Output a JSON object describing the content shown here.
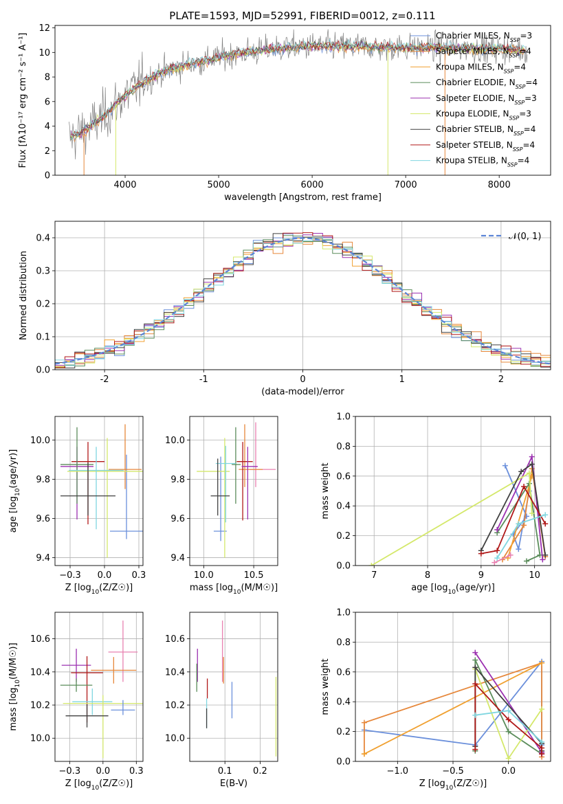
{
  "figure": {
    "title": "PLATE=1593, MJD=52991, FIBERID=0012, z=0.111"
  },
  "styles": {
    "colors": [
      "#6A8FDB",
      "#E6873A",
      "#F0A030",
      "#5A8C5A",
      "#9B30B0",
      "#D4E86A",
      "#404040",
      "#B01818",
      "#7FD6E0",
      "#E880B0"
    ],
    "gray": "#7f7f7f",
    "normal_color": "#5B84D6",
    "grid_color": "#b0b0b0"
  },
  "chart_data": [
    {
      "id": "spectrum",
      "type": "line",
      "xlabel": "wavelength [Angstrom, rest frame]",
      "ylabel": "Flux [fλ10⁻¹⁷ erg cm⁻² s⁻¹ A⁻¹]",
      "xlim": [
        3250,
        8550
      ],
      "ylim": [
        0,
        12.2
      ],
      "xticks": [
        4000,
        5000,
        6000,
        7000,
        8000
      ],
      "yticks": [
        0,
        2,
        4,
        6,
        8,
        10,
        12
      ],
      "legend_position": "top-right",
      "continuum": {
        "x": [
          3400,
          3600,
          3800,
          4000,
          4200,
          4400,
          4600,
          4800,
          5000,
          5200,
          5400,
          5600,
          5800,
          6000,
          6200,
          6400,
          6600,
          6800,
          7000,
          7200,
          7400,
          7600,
          7800,
          8000,
          8200,
          8300
        ],
        "y": [
          3.0,
          3.8,
          5.0,
          6.5,
          7.6,
          8.4,
          8.9,
          9.2,
          9.6,
          9.9,
          10.1,
          10.3,
          10.4,
          10.5,
          10.5,
          10.5,
          10.45,
          10.4,
          10.4,
          10.4,
          10.35,
          10.35,
          10.3,
          10.3,
          10.2,
          10.2
        ]
      },
      "series": [
        {
          "name": "Chabrier MILES, N_SSP=3",
          "color_index": 0
        },
        {
          "name": "Salpeter MILES, N_SSP=4",
          "color_index": 1
        },
        {
          "name": "Kroupa MILES, N_SSP=4",
          "color_index": 2
        },
        {
          "name": "Chabrier ELODIE, N_SSP=4",
          "color_index": 3
        },
        {
          "name": "Salpeter ELODIE, N_SSP=3",
          "color_index": 4
        },
        {
          "name": "Kroupa ELODIE, N_SSP=3",
          "color_index": 5
        },
        {
          "name": "Chabrier STELIB, N_SSP=4",
          "color_index": 6
        },
        {
          "name": "Salpeter STELIB, N_SSP=4",
          "color_index": 7
        },
        {
          "name": "Kroupa STELIB, N_SSP=4",
          "color_index": 8
        }
      ]
    },
    {
      "id": "residuals",
      "type": "histogram",
      "xlabel": "(data-model)/error",
      "ylabel": "Normed distribution",
      "xlim": [
        -2.5,
        2.5
      ],
      "ylim": [
        0,
        0.45
      ],
      "xticks": [
        -2,
        -1,
        0,
        1,
        2
      ],
      "yticks": [
        0.0,
        0.1,
        0.2,
        0.3,
        0.4
      ],
      "bin_width": 0.1,
      "legend": "𝒩(0, 1)",
      "legend_position": "top-right",
      "grid": true
    },
    {
      "id": "age_vs_Z",
      "type": "errorbar",
      "xlabel": "Z [log10(Z/Z☉)]",
      "ylabel": "age  [log10(age/yr)]",
      "xlim": [
        -0.36,
        0.28
      ],
      "ylim": [
        9.36,
        10.12
      ],
      "xticks": [
        -0.25,
        0.0,
        0.25
      ],
      "yticks": [
        9.4,
        9.6,
        9.8,
        10.0
      ],
      "grid": true,
      "points": [
        {
          "c": 0,
          "x": 0.16,
          "y": 9.535,
          "xerr": [
            0.12,
            0.12
          ],
          "yerr": [
            0.04,
            0.39
          ]
        },
        {
          "c": 1,
          "x": 0.15,
          "y": 9.85,
          "xerr": [
            0.12,
            0.12
          ],
          "yerr": [
            0.1,
            0.23
          ]
        },
        {
          "c": 7,
          "x": -0.12,
          "y": 9.89,
          "xerr": [
            0.12,
            0.12
          ],
          "yerr": [
            0.32,
            0.1
          ]
        },
        {
          "c": 4,
          "x": -0.2,
          "y": 9.865,
          "xerr": [
            0.12,
            0.12
          ],
          "yerr": [
            0.27,
            0.1
          ]
        },
        {
          "c": 3,
          "x": -0.2,
          "y": 9.875,
          "xerr": [
            0.12,
            0.12
          ],
          "yerr": [
            0.2,
            0.19
          ]
        },
        {
          "c": 5,
          "x": 0.02,
          "y": 9.84,
          "xerr": [
            0.29,
            0.29
          ],
          "yerr": [
            0.44,
            0.17
          ]
        },
        {
          "c": 8,
          "x": -0.06,
          "y": 9.845,
          "xerr": [
            0.2,
            0.2
          ],
          "yerr": [
            0.3,
            0.12
          ]
        },
        {
          "c": 6,
          "x": -0.12,
          "y": 9.715,
          "xerr": [
            0.2,
            0.2
          ],
          "yerr": [
            0.1,
            0.17
          ]
        }
      ]
    },
    {
      "id": "age_vs_mass",
      "type": "errorbar",
      "xlabel": "mass [log10(M/M☉)]",
      "ylabel": "",
      "xlim": [
        9.86,
        10.74
      ],
      "ylim": [
        9.36,
        10.12
      ],
      "xticks": [
        10.0,
        10.5
      ],
      "yticks": [
        9.4,
        9.6,
        9.8,
        10.0
      ],
      "grid": true,
      "points": [
        {
          "c": 0,
          "x": 10.17,
          "y": 9.535,
          "xerr": [
            0.07,
            0.06
          ],
          "yerr": [
            0.05,
            0.38
          ]
        },
        {
          "c": 9,
          "x": 10.52,
          "y": 9.85,
          "xerr": [
            0.06,
            0.2
          ],
          "yerr": [
            0.09,
            0.24
          ]
        },
        {
          "c": 1,
          "x": 10.41,
          "y": 9.85,
          "xerr": [
            0.06,
            0.18
          ],
          "yerr": [
            0.09,
            0.23
          ]
        },
        {
          "c": 7,
          "x": 10.39,
          "y": 9.89,
          "xerr": [
            0.06,
            0.1
          ],
          "yerr": [
            0.3,
            0.1
          ]
        },
        {
          "c": 4,
          "x": 10.44,
          "y": 9.865,
          "xerr": [
            0.06,
            0.1
          ],
          "yerr": [
            0.27,
            0.1
          ]
        },
        {
          "c": 3,
          "x": 10.32,
          "y": 9.875,
          "xerr": [
            0.04,
            0.05
          ],
          "yerr": [
            0.2,
            0.19
          ]
        },
        {
          "c": 5,
          "x": 10.21,
          "y": 9.84,
          "xerr": [
            0.28,
            0.05
          ],
          "yerr": [
            0.44,
            0.17
          ]
        },
        {
          "c": 8,
          "x": 10.22,
          "y": 9.88,
          "xerr": [
            0.1,
            0.1
          ],
          "yerr": [
            0.3,
            0.09
          ]
        },
        {
          "c": 6,
          "x": 10.14,
          "y": 9.715,
          "xerr": [
            0.07,
            0.12
          ],
          "yerr": [
            0.1,
            0.19
          ]
        }
      ]
    },
    {
      "id": "weight_vs_age",
      "type": "line",
      "xlabel": "age  [log10(age/yr)]",
      "ylabel": "mass weight",
      "xlim": [
        6.65,
        10.3
      ],
      "ylim": [
        0,
        1
      ],
      "xticks": [
        7,
        8,
        9,
        10
      ],
      "yticks": [
        0.0,
        0.2,
        0.4,
        0.6,
        0.8,
        1.0
      ],
      "grid": true,
      "series": [
        {
          "c": 0,
          "x": [
            9.45,
            9.85,
            9.6,
            9.7,
            9.9
          ],
          "y": [
            0.67,
            0.33,
            0.21,
            0.11,
            0.5
          ]
        },
        {
          "c": 1,
          "x": [
            9.4,
            9.8,
            9.95,
            10.2
          ],
          "y": [
            0.04,
            0.27,
            0.65,
            0.06
          ]
        },
        {
          "c": 2,
          "x": [
            9.5,
            9.95
          ],
          "y": [
            0.05,
            0.6
          ]
        },
        {
          "c": 3,
          "x": [
            9.3,
            9.9,
            10.1,
            9.85
          ],
          "y": [
            0.22,
            0.55,
            0.07,
            0.03
          ]
        },
        {
          "c": 4,
          "x": [
            9.3,
            9.95,
            10.15
          ],
          "y": [
            0.24,
            0.73,
            0.04
          ]
        },
        {
          "c": 5,
          "x": [
            6.95,
            9.9,
            9.95
          ],
          "y": [
            0.0,
            0.62,
            0.35
          ]
        },
        {
          "c": 6,
          "x": [
            9.0,
            9.75,
            9.95,
            10.2
          ],
          "y": [
            0.1,
            0.63,
            0.68,
            0.07
          ]
        },
        {
          "c": 7,
          "x": [
            9.0,
            9.3,
            9.8,
            10.2
          ],
          "y": [
            0.08,
            0.1,
            0.53,
            0.28
          ]
        },
        {
          "c": 8,
          "x": [
            9.3,
            9.7,
            10.2
          ],
          "y": [
            0.05,
            0.28,
            0.34
          ]
        },
        {
          "c": 9,
          "x": [
            9.25,
            9.55
          ],
          "y": [
            0.02,
            0.07
          ]
        }
      ]
    },
    {
      "id": "mass_vs_Z",
      "type": "errorbar",
      "xlabel": "Z [log10(Z/Z☉)]",
      "ylabel": "mass [log10(M/M☉)]",
      "xlim": [
        -0.36,
        0.3
      ],
      "ylim": [
        9.86,
        10.76
      ],
      "xticks": [
        -0.25,
        0.0,
        0.25
      ],
      "yticks": [
        10.0,
        10.2,
        10.4,
        10.6
      ],
      "grid": true,
      "points": [
        {
          "c": 9,
          "x": 0.15,
          "y": 10.52,
          "xerr": [
            0.11,
            0.11
          ],
          "yerr": [
            0.18,
            0.19
          ]
        },
        {
          "c": 4,
          "x": -0.2,
          "y": 10.44,
          "xerr": [
            0.11,
            0.11
          ],
          "yerr": [
            0.1,
            0.1
          ]
        },
        {
          "c": 1,
          "x": 0.08,
          "y": 10.41,
          "xerr": [
            0.17,
            0.17
          ],
          "yerr": [
            0.08,
            0.08
          ]
        },
        {
          "c": 7,
          "x": -0.12,
          "y": 10.395,
          "xerr": [
            0.12,
            0.12
          ],
          "yerr": [
            0.3,
            0.1
          ]
        },
        {
          "c": 3,
          "x": -0.2,
          "y": 10.32,
          "xerr": [
            0.12,
            0.12
          ],
          "yerr": [
            0.04,
            0.04
          ]
        },
        {
          "c": 8,
          "x": -0.08,
          "y": 10.22,
          "xerr": [
            0.15,
            0.15
          ],
          "yerr": [
            0.08,
            0.08
          ]
        },
        {
          "c": 5,
          "x": 0.0,
          "y": 10.21,
          "xerr": [
            0.3,
            0.3
          ],
          "yerr": [
            0.33,
            0.05
          ]
        },
        {
          "c": 0,
          "x": 0.15,
          "y": 10.17,
          "xerr": [
            0.09,
            0.09
          ],
          "yerr": [
            0.03,
            0.06
          ]
        },
        {
          "c": 6,
          "x": -0.12,
          "y": 10.135,
          "xerr": [
            0.16,
            0.16
          ],
          "yerr": [
            0.07,
            0.07
          ]
        }
      ]
    },
    {
      "id": "mass_vs_EBV",
      "type": "errorbar",
      "xlabel": "E(B-V)",
      "ylabel": "",
      "xlim": [
        0.0,
        0.25
      ],
      "ylim": [
        9.86,
        10.76
      ],
      "xticks": [
        0.1,
        0.2
      ],
      "yticks": [
        10.0,
        10.2,
        10.4,
        10.6
      ],
      "grid": true,
      "points": [
        {
          "c": 9,
          "x": 0.093,
          "y": 10.52,
          "xerr": [
            0,
            0
          ],
          "yerr": [
            0.18,
            0.19
          ]
        },
        {
          "c": 4,
          "x": 0.022,
          "y": 10.44,
          "xerr": [
            0,
            0
          ],
          "yerr": [
            0.1,
            0.1
          ]
        },
        {
          "c": 1,
          "x": 0.096,
          "y": 10.41,
          "xerr": [
            0,
            0
          ],
          "yerr": [
            0.08,
            0.08
          ]
        },
        {
          "c": 7,
          "x": 0.05,
          "y": 10.3,
          "xerr": [
            0,
            0
          ],
          "yerr": [
            0.06,
            0.06
          ]
        },
        {
          "c": 3,
          "x": 0.02,
          "y": 10.32,
          "xerr": [
            0,
            0
          ],
          "yerr": [
            0.04,
            0.13
          ]
        },
        {
          "c": 8,
          "x": 0.048,
          "y": 10.16,
          "xerr": [
            0,
            0
          ],
          "yerr": [
            0.1,
            0.08
          ]
        },
        {
          "c": 5,
          "x": 0.245,
          "y": 10.15,
          "xerr": [
            0,
            0
          ],
          "yerr": [
            0.26,
            0.22
          ]
        },
        {
          "c": 0,
          "x": 0.12,
          "y": 10.23,
          "xerr": [
            0,
            0
          ],
          "yerr": [
            0.11,
            0.11
          ]
        },
        {
          "c": 6,
          "x": 0.048,
          "y": 10.12,
          "xerr": [
            0,
            0
          ],
          "yerr": [
            0.06,
            0.06
          ]
        }
      ]
    },
    {
      "id": "weight_vs_Z",
      "type": "line",
      "xlabel": "Z [log10(Z/Z☉)]",
      "ylabel": "mass weight",
      "xlim": [
        -1.38,
        0.38
      ],
      "ylim": [
        0,
        1
      ],
      "xticks": [
        -1.0,
        -0.5,
        0.0
      ],
      "yticks": [
        0.0,
        0.2,
        0.4,
        0.6,
        0.8,
        1.0
      ],
      "grid": true,
      "series": [
        {
          "c": 0,
          "x": [
            -1.3,
            -0.3,
            0.3,
            0.3
          ],
          "y": [
            0.21,
            0.11,
            0.67,
            0.11
          ]
        },
        {
          "c": 1,
          "x": [
            -1.3,
            -1.3,
            0.3,
            0.3
          ],
          "y": [
            0.05,
            0.26,
            0.66,
            0.03
          ]
        },
        {
          "c": 2,
          "x": [
            -1.3,
            0.3
          ],
          "y": [
            0.05,
            0.66
          ]
        },
        {
          "c": 3,
          "x": [
            -0.3,
            -0.3,
            0.0,
            0.3
          ],
          "y": [
            0.07,
            0.68,
            0.2,
            0.05
          ]
        },
        {
          "c": 4,
          "x": [
            -0.3,
            0.3,
            0.3
          ],
          "y": [
            0.73,
            0.06,
            0.05
          ]
        },
        {
          "c": 5,
          "x": [
            -0.3,
            0.0,
            0.3
          ],
          "y": [
            0.62,
            0.02,
            0.35
          ]
        },
        {
          "c": 6,
          "x": [
            -0.3,
            -0.3,
            0.3,
            0.3
          ],
          "y": [
            0.1,
            0.63,
            0.12,
            0.07
          ]
        },
        {
          "c": 7,
          "x": [
            -0.3,
            -0.3,
            0.0,
            0.3,
            0.3
          ],
          "y": [
            0.08,
            0.52,
            0.28,
            0.09,
            0.05
          ]
        },
        {
          "c": 8,
          "x": [
            -0.3,
            0.0,
            0.3
          ],
          "y": [
            0.31,
            0.34,
            0.13
          ]
        }
      ]
    }
  ]
}
